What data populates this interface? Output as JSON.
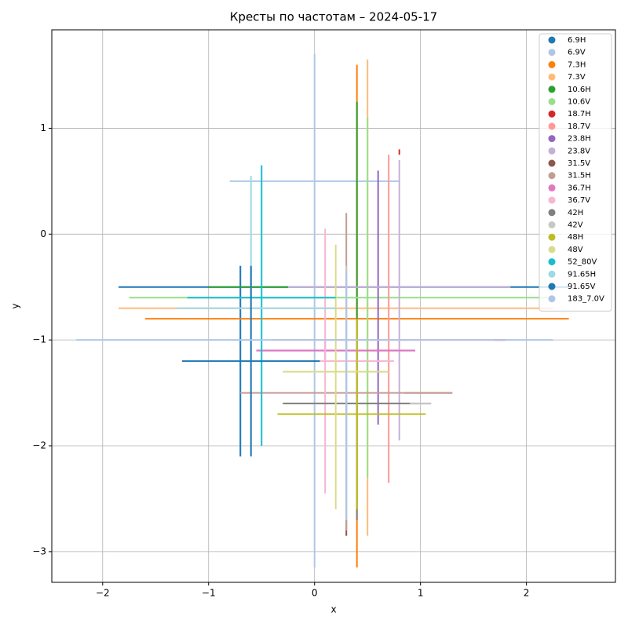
{
  "chart_data": {
    "type": "cross",
    "title": "Кресты по частотам – 2024-05-17",
    "x_label": "x",
    "y_label": "y",
    "xlim": [
      -2.48,
      2.84
    ],
    "ylim": [
      -3.29,
      1.93
    ],
    "xticks": [
      {
        "value": -2,
        "label": "−2"
      },
      {
        "value": -1,
        "label": "−1"
      },
      0,
      1,
      2
    ],
    "yticks": [
      {
        "value": -3,
        "label": "−3"
      },
      {
        "value": -2,
        "label": "−2"
      },
      {
        "value": -1,
        "label": "−1"
      },
      0,
      1
    ],
    "grid": true,
    "legend": "upper right",
    "series": [
      {
        "name": "6.9H",
        "color": "#1f77b4",
        "x": -0.7,
        "y_range": [
          -2.1,
          -0.3
        ],
        "y": -0.5,
        "x_range": [
          -1.85,
          2.4
        ]
      },
      {
        "name": "6.9V",
        "color": "#aec7e8",
        "x": 0,
        "y_range": [
          -3.15,
          1.7
        ],
        "y": 0.5,
        "x_range": [
          -0.8,
          0.8
        ]
      },
      {
        "name": "7.3H",
        "color": "#ff7f0e",
        "x": 0.4,
        "y_range": [
          -3.15,
          1.6
        ],
        "y": -0.8,
        "x_range": [
          -1.6,
          2.4
        ]
      },
      {
        "name": "7.3V",
        "color": "#ffbb78",
        "x": 0.5,
        "y_range": [
          -2.85,
          1.65
        ],
        "y": -0.7,
        "x_range": [
          -1.85,
          2.25
        ]
      },
      {
        "name": "10.6H",
        "color": "#2ca02c",
        "x": 0.4,
        "y_range": [
          -2.6,
          1.25
        ],
        "y": -0.5,
        "x_range": [
          -1,
          -0.25
        ]
      },
      {
        "name": "10.6V",
        "color": "#98df8a",
        "x": 0.5,
        "y_range": [
          -2.3,
          1.1
        ],
        "y": -0.6,
        "x_range": [
          -1.75,
          2.2
        ]
      },
      {
        "name": "18.7H",
        "color": "#d62728",
        "x": 0.8,
        "y_range": [
          0.75,
          0.8
        ],
        "y": -1.0,
        "x_range": [
          1.7,
          1.8
        ]
      },
      {
        "name": "18.7V",
        "color": "#ff9896",
        "x": 0.7,
        "y_range": [
          -2.35,
          0.75
        ],
        "y": -1.0,
        "x_range": [
          -0.4,
          1.8
        ]
      },
      {
        "name": "23.8H",
        "color": "#9467bd",
        "x": 0.6,
        "y_range": [
          -1.8,
          0.6
        ],
        "y": -1.1,
        "x_range": [
          -0.55,
          0.95
        ]
      },
      {
        "name": "23.8V",
        "color": "#c5b0d5",
        "x": 0.8,
        "y_range": [
          -1.95,
          0.7
        ],
        "y": -0.5,
        "x_range": [
          -0.25,
          1.85
        ]
      },
      {
        "name": "31.5V",
        "color": "#8c564b",
        "x": 0.3,
        "y_range": [
          -2.85,
          -2.7
        ],
        "y": -1.5,
        "x_range": [
          0.85,
          1.3
        ]
      },
      {
        "name": "31.5H",
        "color": "#c49c94",
        "x": 0.3,
        "y_range": [
          -2.8,
          0.2
        ],
        "y": -1.5,
        "x_range": [
          -0.7,
          1.3
        ]
      },
      {
        "name": "36.7H",
        "color": "#e377c2",
        "x": 0.1,
        "y_range": [
          -1.2,
          -1.0
        ],
        "y": -1.1,
        "x_range": [
          -0.55,
          0.95
        ]
      },
      {
        "name": "36.7V",
        "color": "#f7b6d2",
        "x": 0.1,
        "y_range": [
          -2.45,
          0.05
        ],
        "y": -1.2,
        "x_range": [
          0.05,
          0.75
        ]
      },
      {
        "name": "42H",
        "color": "#7f7f7f",
        "x": 0.4,
        "y_range": [
          -2.7,
          -2.6
        ],
        "y": -1.6,
        "x_range": [
          -0.3,
          1.1
        ]
      },
      {
        "name": "42V",
        "color": "#c7c7c7",
        "x": 0.3,
        "y_range": [
          -2.7,
          -0.3
        ],
        "y": -1.6,
        "x_range": [
          0.9,
          1.1
        ]
      },
      {
        "name": "48H",
        "color": "#bcbd22",
        "x": 0.4,
        "y_range": [
          -2.6,
          -0.8
        ],
        "y": -1.7,
        "x_range": [
          -0.35,
          1.05
        ]
      },
      {
        "name": "48V",
        "color": "#dbdb8d",
        "x": 0.2,
        "y_range": [
          -2.6,
          -0.1
        ],
        "y": -1.3,
        "x_range": [
          -0.3,
          0.7
        ]
      },
      {
        "name": "52_80V",
        "color": "#17becf",
        "x": -0.5,
        "y_range": [
          -2.0,
          0.65
        ],
        "y": -0.6,
        "x_range": [
          -1.2,
          0.2
        ]
      },
      {
        "name": "91.65H",
        "color": "#9edae5",
        "x": -0.6,
        "y_range": [
          -0.6,
          0.55
        ],
        "y": -0.7,
        "x_range": [
          -1.3,
          0.2
        ]
      },
      {
        "name": "91.65V",
        "color": "#1f77b4",
        "x": -0.6,
        "y_range": [
          -2.1,
          -0.3
        ],
        "y": -1.2,
        "x_range": [
          -1.25,
          0.05
        ]
      },
      {
        "name": "183_7.0V",
        "color": "#aec7e8",
        "x": 0.3,
        "y_range": [
          -2.7,
          -0.35
        ],
        "y": -1.0,
        "x_range": [
          -2.25,
          2.25
        ]
      }
    ]
  }
}
